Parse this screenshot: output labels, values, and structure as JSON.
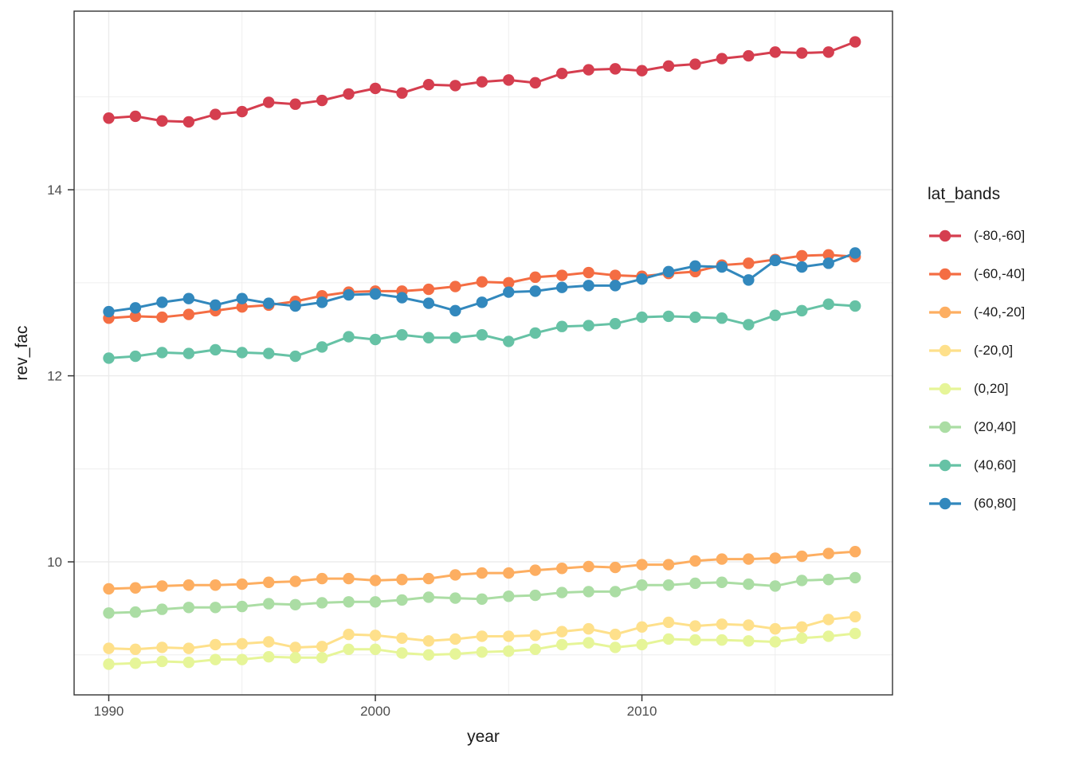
{
  "chart_data": {
    "type": "line",
    "title": "",
    "xlabel": "year",
    "ylabel": "rev_fac",
    "legend_title": "lat_bands",
    "legend_position": "right",
    "grid": true,
    "xlim": [
      1988.7,
      2019.4
    ],
    "ylim": [
      8.57,
      15.92
    ],
    "x_ticks_major": [
      1990,
      2000,
      2010
    ],
    "x_ticks_minor": [
      1995,
      2005,
      2015
    ],
    "y_ticks_major": [
      10,
      12,
      14
    ],
    "y_ticks_minor": [
      9,
      11,
      13,
      15
    ],
    "x": [
      1990,
      1991,
      1992,
      1993,
      1994,
      1995,
      1996,
      1997,
      1998,
      1999,
      2000,
      2001,
      2002,
      2003,
      2004,
      2005,
      2006,
      2007,
      2008,
      2009,
      2010,
      2011,
      2012,
      2013,
      2014,
      2015,
      2016,
      2017,
      2018
    ],
    "series": [
      {
        "name": "(-80,-60]",
        "color": "#D53E4F",
        "values": [
          14.77,
          14.79,
          14.74,
          14.73,
          14.81,
          14.84,
          14.94,
          14.92,
          14.96,
          15.03,
          15.09,
          15.04,
          15.13,
          15.12,
          15.16,
          15.18,
          15.15,
          15.25,
          15.29,
          15.3,
          15.28,
          15.33,
          15.35,
          15.41,
          15.44,
          15.48,
          15.47,
          15.48,
          15.59
        ]
      },
      {
        "name": "(-60,-40]",
        "color": "#F46D43",
        "values": [
          12.62,
          12.64,
          12.63,
          12.66,
          12.7,
          12.74,
          12.76,
          12.8,
          12.86,
          12.9,
          12.91,
          12.91,
          12.93,
          12.96,
          13.01,
          13.0,
          13.06,
          13.08,
          13.11,
          13.08,
          13.07,
          13.1,
          13.12,
          13.19,
          13.21,
          13.25,
          13.29,
          13.3,
          13.28
        ]
      },
      {
        "name": "(-40,-20]",
        "color": "#FDAE61",
        "values": [
          9.71,
          9.72,
          9.74,
          9.75,
          9.75,
          9.76,
          9.78,
          9.79,
          9.82,
          9.82,
          9.8,
          9.81,
          9.82,
          9.86,
          9.88,
          9.88,
          9.91,
          9.93,
          9.95,
          9.94,
          9.97,
          9.97,
          10.01,
          10.03,
          10.03,
          10.04,
          10.06,
          10.09,
          10.11
        ]
      },
      {
        "name": "(-20,0]",
        "color": "#FEE08B",
        "values": [
          9.07,
          9.06,
          9.08,
          9.07,
          9.11,
          9.12,
          9.14,
          9.08,
          9.09,
          9.22,
          9.21,
          9.18,
          9.15,
          9.17,
          9.2,
          9.2,
          9.21,
          9.25,
          9.28,
          9.22,
          9.3,
          9.35,
          9.31,
          9.33,
          9.32,
          9.28,
          9.3,
          9.38,
          9.41
        ]
      },
      {
        "name": "(0,20]",
        "color": "#E6F598",
        "values": [
          8.9,
          8.91,
          8.93,
          8.92,
          8.95,
          8.95,
          8.98,
          8.97,
          8.97,
          9.06,
          9.06,
          9.02,
          9.0,
          9.01,
          9.03,
          9.04,
          9.06,
          9.11,
          9.13,
          9.08,
          9.11,
          9.17,
          9.16,
          9.16,
          9.15,
          9.14,
          9.18,
          9.2,
          9.23
        ]
      },
      {
        "name": "(20,40]",
        "color": "#ABDDA4",
        "values": [
          9.45,
          9.46,
          9.49,
          9.51,
          9.51,
          9.52,
          9.55,
          9.54,
          9.56,
          9.57,
          9.57,
          9.59,
          9.62,
          9.61,
          9.6,
          9.63,
          9.64,
          9.67,
          9.68,
          9.68,
          9.75,
          9.75,
          9.77,
          9.78,
          9.76,
          9.74,
          9.8,
          9.81,
          9.83
        ]
      },
      {
        "name": "(40,60]",
        "color": "#66C2A5",
        "values": [
          12.19,
          12.21,
          12.25,
          12.24,
          12.28,
          12.25,
          12.24,
          12.21,
          12.31,
          12.42,
          12.39,
          12.44,
          12.41,
          12.41,
          12.44,
          12.37,
          12.46,
          12.53,
          12.54,
          12.56,
          12.63,
          12.64,
          12.63,
          12.62,
          12.55,
          12.65,
          12.7,
          12.77,
          12.75
        ]
      },
      {
        "name": "(60,80]",
        "color": "#3288BD",
        "values": [
          12.69,
          12.73,
          12.79,
          12.83,
          12.76,
          12.83,
          12.78,
          12.75,
          12.79,
          12.87,
          12.88,
          12.84,
          12.78,
          12.7,
          12.79,
          12.9,
          12.91,
          12.95,
          12.97,
          12.97,
          13.04,
          13.12,
          13.18,
          13.17,
          13.03,
          13.24,
          13.17,
          13.21,
          13.32
        ]
      }
    ],
    "style": {
      "grid_color": "#EBEBEB",
      "panel_border_color": "#333333",
      "tick_color": "#333333",
      "tick_label_color": "#4D4D4D",
      "text_color": "#1A1A1A",
      "background": "#FFFFFF"
    }
  }
}
